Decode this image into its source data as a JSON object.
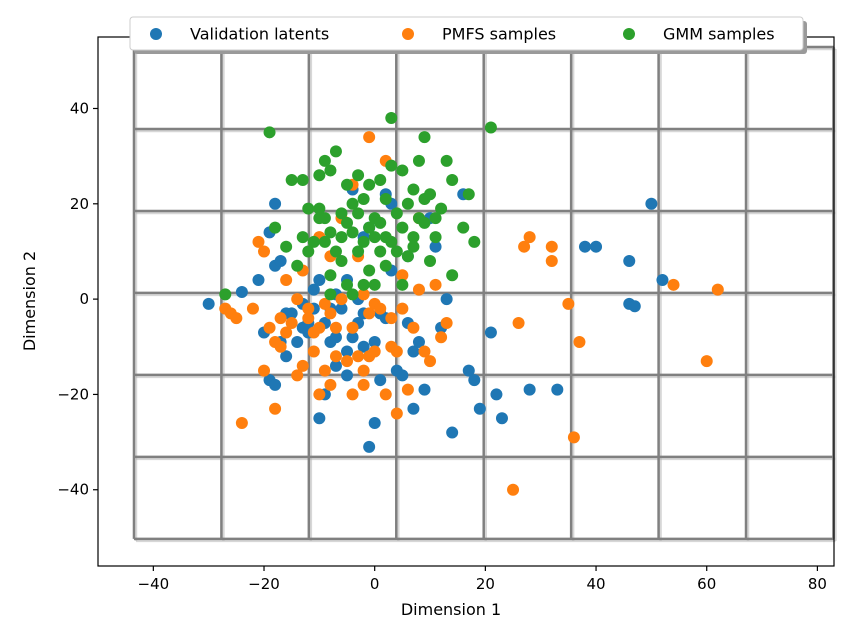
{
  "chart_data": {
    "type": "scatter",
    "xlabel": "Dimension 1",
    "ylabel": "Dimension 2",
    "xlim": [
      -50,
      83
    ],
    "ylim": [
      -56,
      55
    ],
    "x_ticks": [
      -40,
      -20,
      0,
      20,
      40,
      60,
      80
    ],
    "y_ticks": [
      -40,
      -20,
      0,
      20,
      40
    ],
    "grid": true,
    "grid_x": [
      -43.5,
      -27.7,
      -11.9,
      3.9,
      19.7,
      35.5,
      51.3,
      67.1,
      82.9
    ],
    "grid_y": [
      -50.3,
      -33.1,
      -15.9,
      1.3,
      18.5,
      35.7,
      52.9
    ],
    "legend_position": "top-center",
    "series": [
      {
        "name": "Validation latents",
        "color": "#1f77b4",
        "points": [
          [
            -30,
            -1
          ],
          [
            -24,
            1.5
          ],
          [
            -20,
            -7
          ],
          [
            -19,
            -17
          ],
          [
            -19,
            14
          ],
          [
            -18,
            20
          ],
          [
            -18,
            7
          ],
          [
            -18,
            -18
          ],
          [
            -17,
            -9
          ],
          [
            -17,
            8
          ],
          [
            -16,
            -12
          ],
          [
            -15,
            -3
          ],
          [
            -14,
            -9
          ],
          [
            -13,
            -6
          ],
          [
            -12,
            -7
          ],
          [
            -12,
            -5
          ],
          [
            -11,
            -2
          ],
          [
            -11,
            2
          ],
          [
            -10,
            -25
          ],
          [
            -10,
            4
          ],
          [
            -9,
            -20
          ],
          [
            -9,
            -5
          ],
          [
            -8,
            -9
          ],
          [
            -8,
            -2
          ],
          [
            -7,
            -14
          ],
          [
            -7,
            -8
          ],
          [
            -6,
            -2
          ],
          [
            -5,
            -16
          ],
          [
            -5,
            -11
          ],
          [
            -5,
            4
          ],
          [
            -4,
            -8
          ],
          [
            -4,
            23
          ],
          [
            -3,
            -5
          ],
          [
            -3,
            0
          ],
          [
            -2,
            -3
          ],
          [
            -2,
            13
          ],
          [
            -1,
            -31
          ],
          [
            -1,
            15
          ],
          [
            0,
            -26
          ],
          [
            0,
            -9
          ],
          [
            1,
            -17
          ],
          [
            1,
            -3
          ],
          [
            2,
            -4
          ],
          [
            2,
            22
          ],
          [
            3,
            6
          ],
          [
            3,
            20
          ],
          [
            4,
            -15
          ],
          [
            5,
            -16
          ],
          [
            6,
            -5
          ],
          [
            7,
            -23
          ],
          [
            7,
            -11
          ],
          [
            8,
            -9
          ],
          [
            9,
            -19
          ],
          [
            10,
            17
          ],
          [
            11,
            11
          ],
          [
            12,
            -6
          ],
          [
            14,
            -28
          ],
          [
            16,
            22
          ],
          [
            17,
            -15
          ],
          [
            18,
            -17
          ],
          [
            19,
            -23
          ],
          [
            21,
            -7
          ],
          [
            22,
            -20
          ],
          [
            23,
            -25
          ],
          [
            28,
            -19
          ],
          [
            33,
            -19
          ],
          [
            38,
            11
          ],
          [
            40,
            11
          ],
          [
            46,
            8
          ],
          [
            46,
            -1
          ],
          [
            47,
            -1.5
          ],
          [
            50,
            20
          ],
          [
            52,
            4
          ],
          [
            -21,
            4
          ],
          [
            -13,
            -1
          ],
          [
            -7,
            1
          ],
          [
            6,
            9
          ],
          [
            13,
            0
          ],
          [
            -16,
            -3
          ],
          [
            -2,
            -10
          ]
        ]
      },
      {
        "name": "PMFS samples",
        "color": "#ff7f0e",
        "points": [
          [
            -27,
            -2
          ],
          [
            -26,
            -3
          ],
          [
            -25,
            -4
          ],
          [
            -24,
            -26
          ],
          [
            -22,
            -2
          ],
          [
            -21,
            12
          ],
          [
            -20,
            -15
          ],
          [
            -20,
            10
          ],
          [
            -19,
            -6
          ],
          [
            -18,
            -23
          ],
          [
            -18,
            -9
          ],
          [
            -17,
            -10
          ],
          [
            -17,
            -4
          ],
          [
            -16,
            4
          ],
          [
            -15,
            -5
          ],
          [
            -14,
            -16
          ],
          [
            -14,
            0
          ],
          [
            -13,
            -14
          ],
          [
            -12,
            -4
          ],
          [
            -12,
            -2
          ],
          [
            -11,
            -11
          ],
          [
            -11,
            -7
          ],
          [
            -10,
            -20
          ],
          [
            -10,
            -6
          ],
          [
            -10,
            13
          ],
          [
            -9,
            -15
          ],
          [
            -9,
            -1
          ],
          [
            -8,
            -18
          ],
          [
            -8,
            -3
          ],
          [
            -8,
            9
          ],
          [
            -7,
            -6
          ],
          [
            -7,
            -12
          ],
          [
            -6,
            0
          ],
          [
            -6,
            17
          ],
          [
            -5,
            -13
          ],
          [
            -4,
            -20
          ],
          [
            -4,
            -6
          ],
          [
            -3,
            -12
          ],
          [
            -3,
            9
          ],
          [
            -2,
            -18
          ],
          [
            -2,
            -15
          ],
          [
            -2,
            1
          ],
          [
            -1,
            34
          ],
          [
            -1,
            -3
          ],
          [
            -1,
            -12
          ],
          [
            0,
            -11
          ],
          [
            0,
            -1
          ],
          [
            1,
            -2
          ],
          [
            2,
            -20
          ],
          [
            2,
            29
          ],
          [
            3,
            -4
          ],
          [
            3,
            -10
          ],
          [
            4,
            -11
          ],
          [
            4,
            -24
          ],
          [
            5,
            -2
          ],
          [
            5,
            5
          ],
          [
            6,
            -19
          ],
          [
            7,
            -6
          ],
          [
            8,
            2
          ],
          [
            9,
            -11
          ],
          [
            10,
            -13
          ],
          [
            11,
            3
          ],
          [
            12,
            -8
          ],
          [
            13,
            -5
          ],
          [
            25,
            -40
          ],
          [
            26,
            -5
          ],
          [
            27,
            11
          ],
          [
            28,
            13
          ],
          [
            32,
            11
          ],
          [
            32,
            8
          ],
          [
            35,
            -1
          ],
          [
            36,
            -29
          ],
          [
            37,
            -9
          ],
          [
            54,
            3
          ],
          [
            60,
            -13
          ],
          [
            62,
            2
          ],
          [
            -16,
            -7
          ],
          [
            -4,
            24
          ],
          [
            8,
            17
          ],
          [
            -13,
            6
          ]
        ]
      },
      {
        "name": "GMM samples",
        "color": "#2ca02c",
        "points": [
          [
            -27,
            1
          ],
          [
            -19,
            35
          ],
          [
            -18,
            15
          ],
          [
            -16,
            11
          ],
          [
            -15,
            25
          ],
          [
            -14,
            7
          ],
          [
            -13,
            13
          ],
          [
            -13,
            25
          ],
          [
            -12,
            10
          ],
          [
            -11,
            12
          ],
          [
            -10,
            17
          ],
          [
            -10,
            19
          ],
          [
            -10,
            26
          ],
          [
            -9,
            12
          ],
          [
            -9,
            17
          ],
          [
            -9,
            29
          ],
          [
            -8,
            14
          ],
          [
            -8,
            27
          ],
          [
            -8,
            1
          ],
          [
            -7,
            10
          ],
          [
            -7,
            31
          ],
          [
            -6,
            13
          ],
          [
            -6,
            18
          ],
          [
            -6,
            8
          ],
          [
            -5,
            24
          ],
          [
            -5,
            16
          ],
          [
            -5,
            3
          ],
          [
            -4,
            14
          ],
          [
            -4,
            20
          ],
          [
            -4,
            1
          ],
          [
            -3,
            26
          ],
          [
            -3,
            10
          ],
          [
            -3,
            18
          ],
          [
            -2,
            12
          ],
          [
            -2,
            21
          ],
          [
            -2,
            3
          ],
          [
            -1,
            15
          ],
          [
            -1,
            24
          ],
          [
            0,
            13
          ],
          [
            0,
            17
          ],
          [
            0,
            3
          ],
          [
            1,
            10
          ],
          [
            1,
            16
          ],
          [
            1,
            25
          ],
          [
            2,
            13
          ],
          [
            2,
            21
          ],
          [
            3,
            12
          ],
          [
            3,
            28
          ],
          [
            3,
            38
          ],
          [
            4,
            18
          ],
          [
            4,
            10
          ],
          [
            5,
            15
          ],
          [
            5,
            27
          ],
          [
            6,
            20
          ],
          [
            6,
            9
          ],
          [
            7,
            13
          ],
          [
            7,
            23
          ],
          [
            8,
            17
          ],
          [
            8,
            29
          ],
          [
            9,
            16
          ],
          [
            9,
            21
          ],
          [
            9,
            34
          ],
          [
            10,
            8
          ],
          [
            10,
            22
          ],
          [
            11,
            13
          ],
          [
            12,
            19
          ],
          [
            13,
            29
          ],
          [
            14,
            5
          ],
          [
            14,
            25
          ],
          [
            16,
            15
          ],
          [
            17,
            22
          ],
          [
            18,
            12
          ],
          [
            21,
            36
          ],
          [
            5,
            3
          ],
          [
            -8,
            5
          ],
          [
            2,
            7
          ],
          [
            -1,
            6
          ],
          [
            7,
            11
          ],
          [
            -12,
            19
          ],
          [
            11,
            17
          ]
        ]
      }
    ]
  }
}
